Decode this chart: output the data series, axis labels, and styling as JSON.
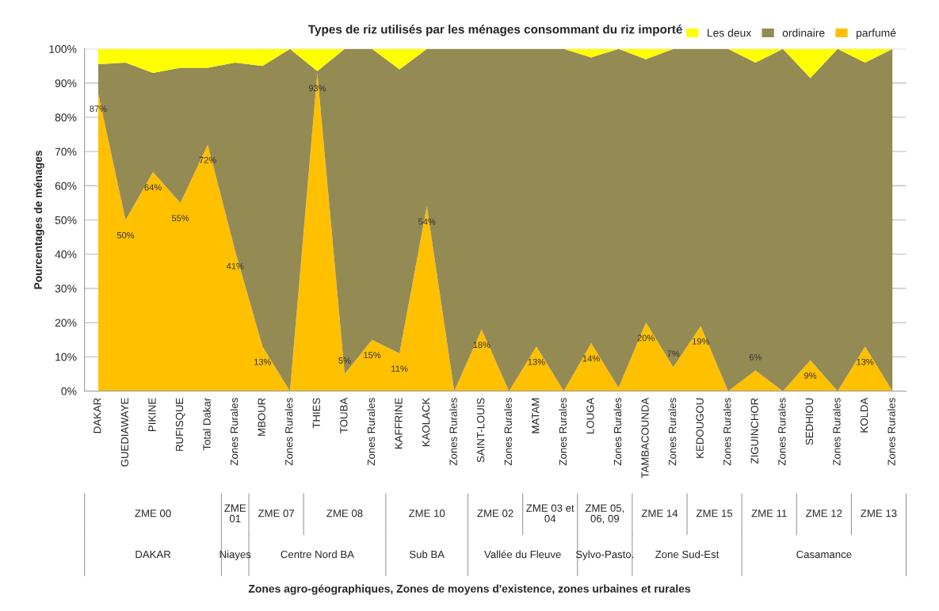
{
  "chart_data": {
    "type": "area",
    "stacked": true,
    "title": "Types de riz utilisés par les ménages consommant du riz importé",
    "ylabel": "Pourcentages de ménages",
    "categories": [
      "DAKAR",
      "GUEDIAWAYE",
      "PIKINE",
      "RUFISQUE",
      "Total Dakar",
      "Zones Rurales",
      "MBOUR",
      "Zones Rurales",
      "THIES",
      "TOUBA",
      "Zones Rurales",
      "KAFFRINE",
      "KAOLACK",
      "Zones Rurales",
      "SAINT-LOUIS",
      "Zones Rurales",
      "MATAM",
      "Zones Rurales",
      "LOUGA",
      "Zones Rurales",
      "TAMBACOUNDA",
      "Zones Rurales",
      "KEDOUGOU",
      "Zones Rurales",
      "ZIGUINCHOR",
      "Zones Rurales",
      "SEDHIOU",
      "Zones Rurales",
      "KOLDA",
      "Zones Rurales"
    ],
    "series": [
      {
        "name": "parfumé",
        "color": "#ffc000",
        "values": [
          87,
          50,
          64,
          55,
          72,
          41,
          13,
          0,
          93,
          5,
          15,
          11,
          54,
          0,
          18,
          0,
          13,
          0,
          14,
          1,
          20,
          7,
          19,
          0,
          6,
          0,
          9,
          0,
          13,
          0
        ],
        "value_labels": [
          "87%",
          "50%",
          "64%",
          "55%",
          "72%",
          "41%",
          "13%",
          null,
          "93%",
          "5%",
          "15%",
          "11%",
          "54%",
          null,
          "18%",
          null,
          "13%",
          null,
          "14%",
          null,
          "20%",
          "7%",
          "19%",
          null,
          "6%",
          null,
          "9%",
          null,
          "13%",
          null
        ]
      },
      {
        "name": "ordinaire",
        "color": "#948a54",
        "values": [
          8.5,
          46,
          29,
          39.5,
          22.5,
          55,
          82,
          100,
          0.5,
          95,
          85,
          83,
          46,
          100,
          82,
          100,
          87,
          100,
          83.5,
          99,
          77,
          93,
          81,
          100,
          90,
          100,
          82.5,
          100,
          83,
          100
        ]
      },
      {
        "name": "Les deux",
        "color": "#ffff00",
        "values": [
          4.5,
          4,
          7,
          5.5,
          5.5,
          4,
          5,
          0,
          6.5,
          0,
          0,
          6,
          0,
          0,
          0,
          0,
          0,
          0,
          2.5,
          0,
          3,
          0,
          0,
          0,
          4,
          0,
          8.5,
          0,
          4,
          0
        ]
      }
    ],
    "ylim": [
      0,
      100
    ],
    "yticks": [
      {
        "value": 0,
        "label": "0%"
      },
      {
        "value": 10,
        "label": "10%"
      },
      {
        "value": 20,
        "label": "20%"
      },
      {
        "value": 30,
        "label": "30%"
      },
      {
        "value": 40,
        "label": "40%"
      },
      {
        "value": 50,
        "label": "50%"
      },
      {
        "value": 60,
        "label": "60%"
      },
      {
        "value": 70,
        "label": "70%"
      },
      {
        "value": 80,
        "label": "80%"
      },
      {
        "value": 90,
        "label": "90%"
      },
      {
        "value": 100,
        "label": "100%"
      }
    ],
    "grid": "y",
    "legend": "top right",
    "annotations": [
      "ZME 00",
      "ZME 01",
      "ZME 07",
      "ZME 08",
      "ZME 10",
      "ZME 02",
      "ZME 03 et 04",
      "ZME 05, 06, 09",
      "ZME 14",
      "ZME 15",
      "ZME 11",
      "ZME 12",
      "ZME 13",
      "DAKAR",
      "Niayes",
      "Centre Nord BA",
      "Sub BA",
      "Vallée du Fleuve",
      "Sylvo-Pasto.",
      "Zone Sud-Est",
      "Casamance",
      "Zones agro-géographiques, Zones de moyens d'existence, zones urbaines et rurales"
    ]
  }
}
